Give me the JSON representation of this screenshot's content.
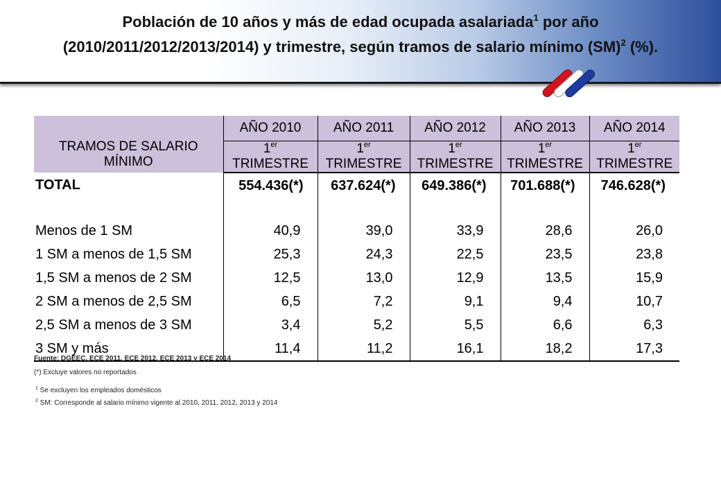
{
  "header": {
    "title_line1_prefix": "Población de 10 años y más de edad ocupada asalariada",
    "title_line1_sup": "1",
    "title_line1_suffix": " por año",
    "title_line2_prefix": "(2010/2011/2012/2013/2014)  y trimestre, según tramos de salario mínimo (SM)",
    "title_line2_sup": "2",
    "title_line2_suffix": " (%).",
    "logo_colors": [
      "#d2141e",
      "#ffffff",
      "#1e3ca0"
    ]
  },
  "table": {
    "row_header_label": "TRAMOS DE SALARIO MÍNIMO",
    "years": [
      "AÑO 2010",
      "AÑO 2011",
      "AÑO 2012",
      "AÑO 2013",
      "AÑO 2014"
    ],
    "quarter_prefix": "1",
    "quarter_sup": "er",
    "quarter_suffix": " TRIMESTRE",
    "total": {
      "label": "TOTAL",
      "values": [
        "554.436(*)",
        "637.624(*)",
        "649.386(*)",
        "701.688(*)",
        "746.628(*)"
      ]
    },
    "rows": [
      {
        "label": "Menos de 1 SM",
        "values": [
          "40,9",
          "39,0",
          "33,9",
          "28,6",
          "26,0"
        ]
      },
      {
        "label": "1 SM a menos de 1,5 SM",
        "values": [
          "25,3",
          "24,3",
          "22,5",
          "23,5",
          "23,8"
        ]
      },
      {
        "label": "1,5 SM a menos de 2 SM",
        "values": [
          "12,5",
          "13,0",
          "12,9",
          "13,5",
          "15,9"
        ]
      },
      {
        "label": "2 SM a menos de 2,5 SM",
        "values": [
          "6,5",
          "7,2",
          "9,1",
          "9,4",
          "10,7"
        ]
      },
      {
        "label": "2,5 SM a menos de 3 SM",
        "values": [
          "3,4",
          "5,2",
          "5,5",
          "6,6",
          "6,3"
        ]
      },
      {
        "label": "3 SM y más",
        "values": [
          "11,4",
          "11,2",
          "16,1",
          "18,2",
          "17,3"
        ]
      }
    ],
    "header_color": "#ccc0da"
  },
  "notes": {
    "source": "Fuente: DGEEC. ECE 2011, ECE 2012, ECE 2013 y ECE 2014",
    "asterisk": "(*) Excluye valores no  reportados",
    "fn1_sup": "1",
    "fn1_text": " Se excluyen los empleados domésticos",
    "fn2_sup": "2",
    "fn2_text": " SM: Corresponde al salario mínimo  vigente al 2010, 2011,  2012, 2013 y 2014"
  }
}
